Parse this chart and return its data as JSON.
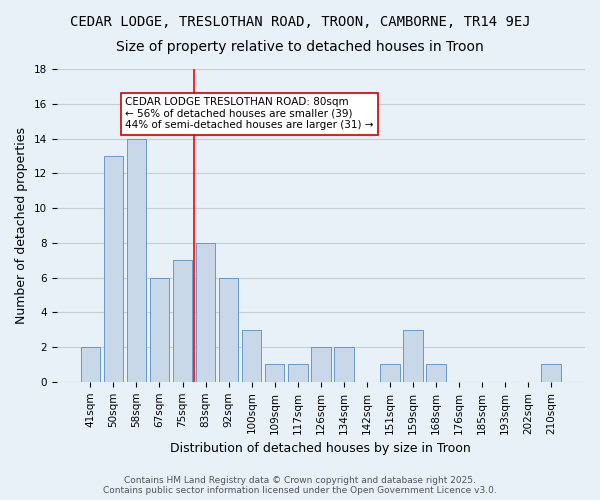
{
  "title": "CEDAR LODGE, TRESLOTHAN ROAD, TROON, CAMBORNE, TR14 9EJ",
  "subtitle": "Size of property relative to detached houses in Troon",
  "xlabel": "Distribution of detached houses by size in Troon",
  "ylabel": "Number of detached properties",
  "categories": [
    "41sqm",
    "50sqm",
    "58sqm",
    "67sqm",
    "75sqm",
    "83sqm",
    "92sqm",
    "100sqm",
    "109sqm",
    "117sqm",
    "126sqm",
    "134sqm",
    "142sqm",
    "151sqm",
    "159sqm",
    "168sqm",
    "176sqm",
    "185sqm",
    "193sqm",
    "202sqm",
    "210sqm"
  ],
  "values": [
    2,
    13,
    14,
    6,
    7,
    8,
    6,
    3,
    1,
    1,
    2,
    2,
    0,
    1,
    3,
    1,
    0,
    0,
    0,
    0,
    1
  ],
  "bar_color": "#c8d8e8",
  "bar_edge_color": "#6699cc",
  "bar_edge_width": 0.7,
  "grid_color": "#cccccc",
  "background_color": "#e8f0f8",
  "plot_bg_color": "#e8f0f8",
  "red_line_x": 4.5,
  "red_line_label": "CEDAR LODGE TRESLOTHAN ROAD: 80sqm\n← 56% of detached houses are smaller (39)\n44% of semi-detached houses are larger (31) →",
  "annotation_box_color": "#ffffff",
  "annotation_border_color": "#cc0000",
  "ylim": [
    0,
    18
  ],
  "yticks": [
    0,
    2,
    4,
    6,
    8,
    10,
    12,
    14,
    16,
    18
  ],
  "footnote": "Contains HM Land Registry data © Crown copyright and database right 2025.\nContains public sector information licensed under the Open Government Licence v3.0.",
  "title_fontsize": 10,
  "subtitle_fontsize": 10,
  "xlabel_fontsize": 9,
  "ylabel_fontsize": 9,
  "tick_fontsize": 7.5,
  "annotation_fontsize": 7.5,
  "footnote_fontsize": 6.5
}
